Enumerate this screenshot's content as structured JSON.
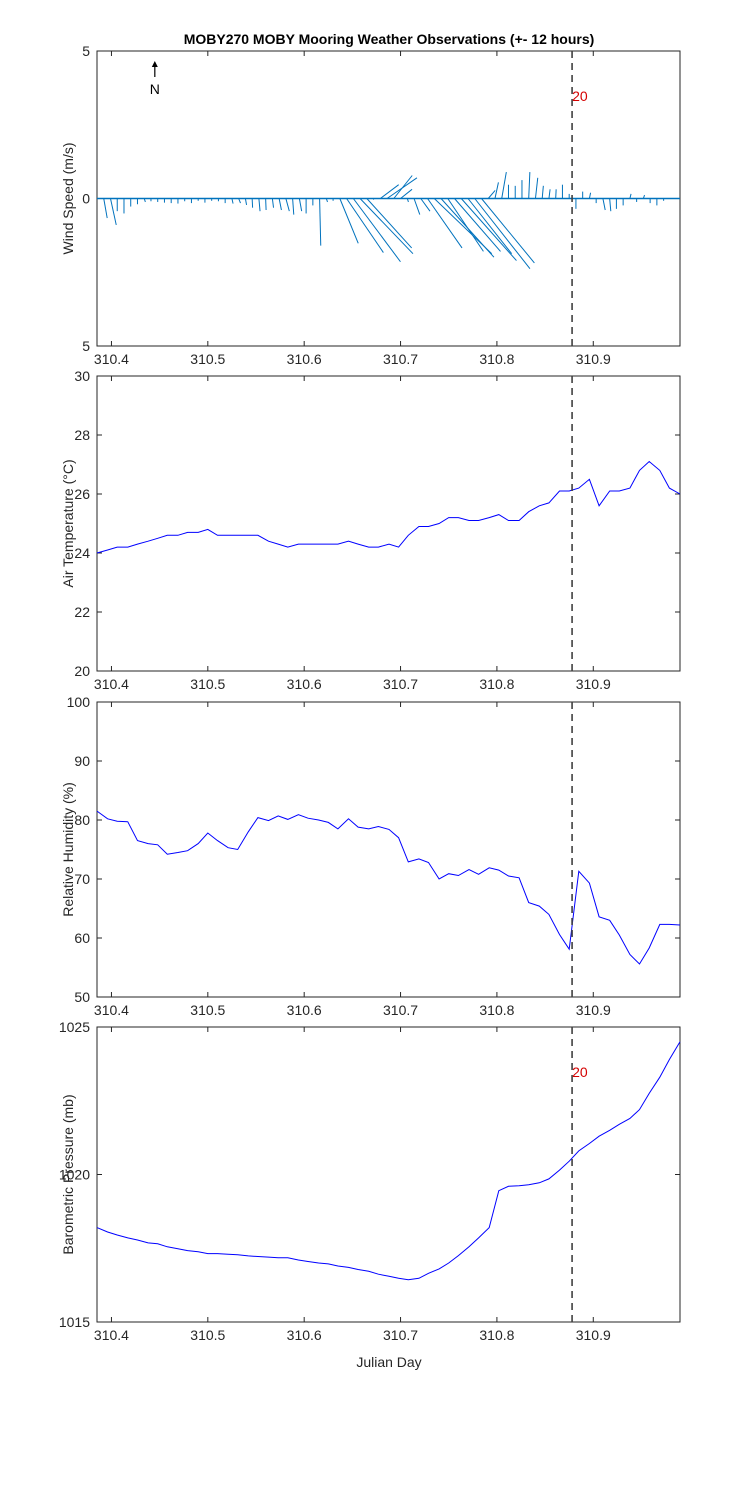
{
  "title": "MOBY270 MOBY Mooring Weather Observations (+- 12 hours)",
  "x_label": "Julian Day",
  "colors": {
    "series": "#0000ff",
    "wind": "#0072bd",
    "marker_line": "#404040",
    "marker_label": "#d40000",
    "axes": "#262626"
  },
  "chart_data": [
    {
      "id": "wind",
      "type": "quiver",
      "ylabel": "Wind Speed (m/s)",
      "xlim": [
        310.385,
        310.99
      ],
      "ylim": [
        -5,
        5
      ],
      "yticks": [
        -5,
        0,
        5
      ],
      "ytick_labels": [
        "5",
        "0",
        "5"
      ],
      "xticks": [
        310.4,
        310.5,
        310.6,
        310.7,
        310.8,
        310.9
      ],
      "xtick_labels": [
        "310.4",
        "310.5",
        "310.6",
        "310.7",
        "310.8",
        "310.9"
      ],
      "north_label": "N",
      "marker": {
        "x": 310.878,
        "label": "20"
      },
      "vectors": [
        [
          310.392,
          0.15,
          -0.85
        ],
        [
          310.399,
          0.25,
          -1.15
        ],
        [
          310.406,
          0.0,
          -0.55
        ],
        [
          310.413,
          0.0,
          -0.65
        ],
        [
          310.42,
          0.0,
          -0.35
        ],
        [
          310.427,
          0.0,
          -0.25
        ],
        [
          310.434,
          0.05,
          -0.15
        ],
        [
          310.441,
          0.0,
          -0.12
        ],
        [
          310.448,
          0.0,
          -0.15
        ],
        [
          310.455,
          0.0,
          -0.18
        ],
        [
          310.462,
          0.0,
          -0.2
        ],
        [
          310.469,
          0.0,
          -0.22
        ],
        [
          310.476,
          0.0,
          -0.12
        ],
        [
          310.483,
          0.0,
          -0.2
        ],
        [
          310.49,
          0.0,
          -0.1
        ],
        [
          310.497,
          0.0,
          -0.18
        ],
        [
          310.504,
          0.0,
          -0.1
        ],
        [
          310.511,
          0.0,
          -0.12
        ],
        [
          310.518,
          0.0,
          -0.2
        ],
        [
          310.525,
          0.05,
          -0.22
        ],
        [
          310.532,
          0.08,
          -0.2
        ],
        [
          310.539,
          0.05,
          -0.28
        ],
        [
          310.546,
          0.02,
          -0.4
        ],
        [
          310.553,
          0.05,
          -0.55
        ],
        [
          310.56,
          0.02,
          -0.5
        ],
        [
          310.567,
          0.05,
          -0.4
        ],
        [
          310.574,
          0.1,
          -0.5
        ],
        [
          310.581,
          0.15,
          -0.55
        ],
        [
          310.588,
          0.05,
          -0.7
        ],
        [
          310.595,
          0.1,
          -0.55
        ],
        [
          310.602,
          0.0,
          -0.65
        ],
        [
          310.609,
          0.0,
          -0.3
        ],
        [
          310.616,
          0.05,
          -2.05
        ],
        [
          310.623,
          0.05,
          -0.15
        ],
        [
          310.63,
          0.0,
          -0.1
        ],
        [
          310.637,
          0.8,
          -1.95
        ],
        [
          310.644,
          1.6,
          -2.35
        ],
        [
          310.651,
          2.05,
          -2.75
        ],
        [
          310.658,
          2.3,
          -2.4
        ],
        [
          310.665,
          1.95,
          -2.15
        ],
        [
          310.672,
          0.0,
          -0.05
        ],
        [
          310.679,
          0.8,
          0.6
        ],
        [
          310.686,
          1.3,
          0.9
        ],
        [
          310.693,
          0.8,
          1.0
        ],
        [
          310.7,
          0.5,
          0.4
        ],
        [
          310.707,
          0.05,
          -0.15
        ],
        [
          310.714,
          0.25,
          -0.7
        ],
        [
          310.721,
          0.4,
          -0.55
        ],
        [
          310.728,
          1.5,
          -2.15
        ],
        [
          310.735,
          2.5,
          -2.4
        ],
        [
          310.742,
          2.3,
          -2.55
        ],
        [
          310.749,
          1.55,
          -2.3
        ],
        [
          310.756,
          2.0,
          -2.3
        ],
        [
          310.763,
          2.4,
          -2.7
        ],
        [
          310.77,
          1.9,
          -2.4
        ],
        [
          310.777,
          2.4,
          -3.05
        ],
        [
          310.784,
          2.3,
          -2.8
        ],
        [
          310.791,
          0.3,
          0.35
        ],
        [
          310.798,
          0.15,
          0.7
        ],
        [
          310.805,
          0.2,
          1.15
        ],
        [
          310.812,
          0.0,
          0.6
        ],
        [
          310.819,
          0.0,
          0.55
        ],
        [
          310.826,
          0.0,
          0.8
        ],
        [
          310.833,
          0.05,
          1.15
        ],
        [
          310.84,
          0.1,
          0.9
        ],
        [
          310.847,
          0.05,
          0.55
        ],
        [
          310.854,
          0.05,
          0.4
        ],
        [
          310.861,
          0.02,
          0.4
        ],
        [
          310.868,
          0.0,
          0.6
        ],
        [
          310.875,
          0.0,
          0.2
        ],
        [
          310.882,
          0.0,
          -0.45
        ],
        [
          310.889,
          0.0,
          0.3
        ],
        [
          310.896,
          0.05,
          0.25
        ],
        [
          310.903,
          0.0,
          -0.2
        ],
        [
          310.91,
          0.1,
          -0.5
        ],
        [
          310.917,
          0.05,
          -0.55
        ],
        [
          310.924,
          0.0,
          -0.45
        ],
        [
          310.931,
          0.0,
          -0.3
        ],
        [
          310.938,
          0.05,
          0.2
        ],
        [
          310.945,
          0.0,
          -0.15
        ],
        [
          310.952,
          0.05,
          0.15
        ],
        [
          310.959,
          0.0,
          -0.2
        ],
        [
          310.966,
          0.0,
          -0.3
        ],
        [
          310.973,
          0.0,
          -0.1
        ]
      ]
    },
    {
      "id": "air_temp",
      "type": "line",
      "ylabel": "Air Temperature (°C)",
      "xlim": [
        310.385,
        310.99
      ],
      "ylim": [
        20,
        30
      ],
      "yticks": [
        20,
        22,
        24,
        26,
        28,
        30
      ],
      "ytick_labels": [
        "20",
        "22",
        "24",
        "26",
        "28",
        "30"
      ],
      "xticks": [
        310.4,
        310.5,
        310.6,
        310.7,
        310.8,
        310.9
      ],
      "xtick_labels": [
        "310.4",
        "310.5",
        "310.6",
        "310.7",
        "310.8",
        "310.9"
      ],
      "marker": {
        "x": 310.878,
        "label": ""
      },
      "x": [
        310.385,
        310.396,
        310.406,
        310.417,
        310.427,
        310.438,
        310.448,
        310.458,
        310.469,
        310.479,
        310.49,
        310.5,
        310.51,
        310.521,
        310.531,
        310.542,
        310.552,
        310.563,
        310.573,
        310.583,
        310.594,
        310.604,
        310.615,
        310.625,
        310.635,
        310.646,
        310.656,
        310.667,
        310.677,
        310.688,
        310.698,
        310.708,
        310.719,
        310.729,
        310.74,
        310.75,
        310.76,
        310.771,
        310.781,
        310.792,
        310.802,
        310.812,
        310.823,
        310.833,
        310.844,
        310.854,
        310.865,
        310.875,
        310.885,
        310.896,
        310.906,
        310.917,
        310.927,
        310.938,
        310.948,
        310.958,
        310.969,
        310.979,
        310.99
      ],
      "y": [
        24.0,
        24.1,
        24.2,
        24.2,
        24.3,
        24.4,
        24.5,
        24.6,
        24.6,
        24.7,
        24.7,
        24.8,
        24.6,
        24.6,
        24.6,
        24.6,
        24.6,
        24.4,
        24.3,
        24.2,
        24.3,
        24.3,
        24.3,
        24.3,
        24.3,
        24.4,
        24.3,
        24.2,
        24.2,
        24.3,
        24.2,
        24.6,
        24.9,
        24.9,
        25.0,
        25.2,
        25.2,
        25.1,
        25.1,
        25.2,
        25.3,
        25.1,
        25.1,
        25.4,
        25.6,
        25.7,
        26.1,
        26.1,
        26.2,
        26.5,
        25.6,
        26.1,
        26.1,
        26.2,
        26.8,
        27.1,
        26.8,
        26.2,
        26.0
      ]
    },
    {
      "id": "rel_humidity",
      "type": "line",
      "ylabel": "Relative Humidity (%)",
      "xlim": [
        310.385,
        310.99
      ],
      "ylim": [
        50,
        100
      ],
      "yticks": [
        50,
        60,
        70,
        80,
        90,
        100
      ],
      "ytick_labels": [
        "50",
        "60",
        "70",
        "80",
        "90",
        "100"
      ],
      "xticks": [
        310.4,
        310.5,
        310.6,
        310.7,
        310.8,
        310.9
      ],
      "xtick_labels": [
        "310.4",
        "310.5",
        "310.6",
        "310.7",
        "310.8",
        "310.9"
      ],
      "marker": {
        "x": 310.878,
        "label": ""
      },
      "x": [
        310.385,
        310.396,
        310.406,
        310.417,
        310.427,
        310.438,
        310.448,
        310.458,
        310.469,
        310.479,
        310.49,
        310.5,
        310.51,
        310.521,
        310.531,
        310.542,
        310.552,
        310.563,
        310.573,
        310.583,
        310.594,
        310.604,
        310.615,
        310.625,
        310.635,
        310.646,
        310.656,
        310.667,
        310.677,
        310.688,
        310.698,
        310.708,
        310.719,
        310.729,
        310.74,
        310.75,
        310.76,
        310.771,
        310.781,
        310.792,
        310.802,
        310.812,
        310.823,
        310.833,
        310.844,
        310.854,
        310.865,
        310.875,
        310.885,
        310.896,
        310.906,
        310.917,
        310.927,
        310.938,
        310.948,
        310.958,
        310.969,
        310.979,
        310.99
      ],
      "y": [
        81.5,
        80.2,
        79.8,
        79.7,
        76.5,
        76.0,
        75.8,
        74.2,
        74.5,
        74.8,
        76.0,
        77.8,
        76.5,
        75.3,
        75.0,
        78.0,
        80.4,
        79.9,
        80.7,
        80.1,
        80.9,
        80.3,
        80.0,
        79.6,
        78.5,
        80.2,
        78.8,
        78.5,
        78.9,
        78.4,
        77.0,
        72.9,
        73.4,
        72.8,
        70.0,
        70.9,
        70.6,
        71.6,
        70.8,
        71.9,
        71.5,
        70.5,
        70.2,
        66.0,
        65.4,
        64.0,
        60.6,
        58.1,
        71.3,
        69.3,
        63.6,
        63.0,
        60.5,
        57.2,
        55.6,
        58.3,
        62.3,
        62.3,
        62.2
      ]
    },
    {
      "id": "baro_pressure",
      "type": "line",
      "ylabel": "Barometric Pressure (mb)",
      "xlim": [
        310.385,
        310.99
      ],
      "ylim": [
        1015,
        1025
      ],
      "yticks": [
        1015,
        1020,
        1025
      ],
      "ytick_labels": [
        "1015",
        "1020",
        "1025"
      ],
      "xticks": [
        310.4,
        310.5,
        310.6,
        310.7,
        310.8,
        310.9
      ],
      "xtick_labels": [
        "310.4",
        "310.5",
        "310.6",
        "310.7",
        "310.8",
        "310.9"
      ],
      "marker": {
        "x": 310.878,
        "label": "20"
      },
      "x": [
        310.385,
        310.396,
        310.406,
        310.417,
        310.427,
        310.438,
        310.448,
        310.458,
        310.469,
        310.479,
        310.49,
        310.5,
        310.51,
        310.521,
        310.531,
        310.542,
        310.552,
        310.563,
        310.573,
        310.583,
        310.594,
        310.604,
        310.615,
        310.625,
        310.635,
        310.646,
        310.656,
        310.667,
        310.677,
        310.688,
        310.698,
        310.708,
        310.719,
        310.729,
        310.74,
        310.75,
        310.76,
        310.771,
        310.781,
        310.792,
        310.802,
        310.812,
        310.823,
        310.833,
        310.844,
        310.854,
        310.865,
        310.875,
        310.885,
        310.896,
        310.906,
        310.917,
        310.927,
        310.938,
        310.948,
        310.958,
        310.969,
        310.979,
        310.99
      ],
      "y": [
        1018.2,
        1018.05,
        1017.95,
        1017.85,
        1017.78,
        1017.68,
        1017.65,
        1017.55,
        1017.48,
        1017.42,
        1017.38,
        1017.32,
        1017.32,
        1017.3,
        1017.28,
        1017.24,
        1017.22,
        1017.2,
        1017.18,
        1017.18,
        1017.1,
        1017.05,
        1017.0,
        1016.97,
        1016.9,
        1016.85,
        1016.78,
        1016.72,
        1016.62,
        1016.55,
        1016.48,
        1016.43,
        1016.48,
        1016.65,
        1016.8,
        1017.0,
        1017.25,
        1017.55,
        1017.85,
        1018.2,
        1019.45,
        1019.6,
        1019.62,
        1019.65,
        1019.72,
        1019.85,
        1020.15,
        1020.45,
        1020.8,
        1021.05,
        1021.3,
        1021.5,
        1021.7,
        1021.9,
        1022.2,
        1022.75,
        1023.3,
        1023.9,
        1024.5
      ]
    }
  ]
}
